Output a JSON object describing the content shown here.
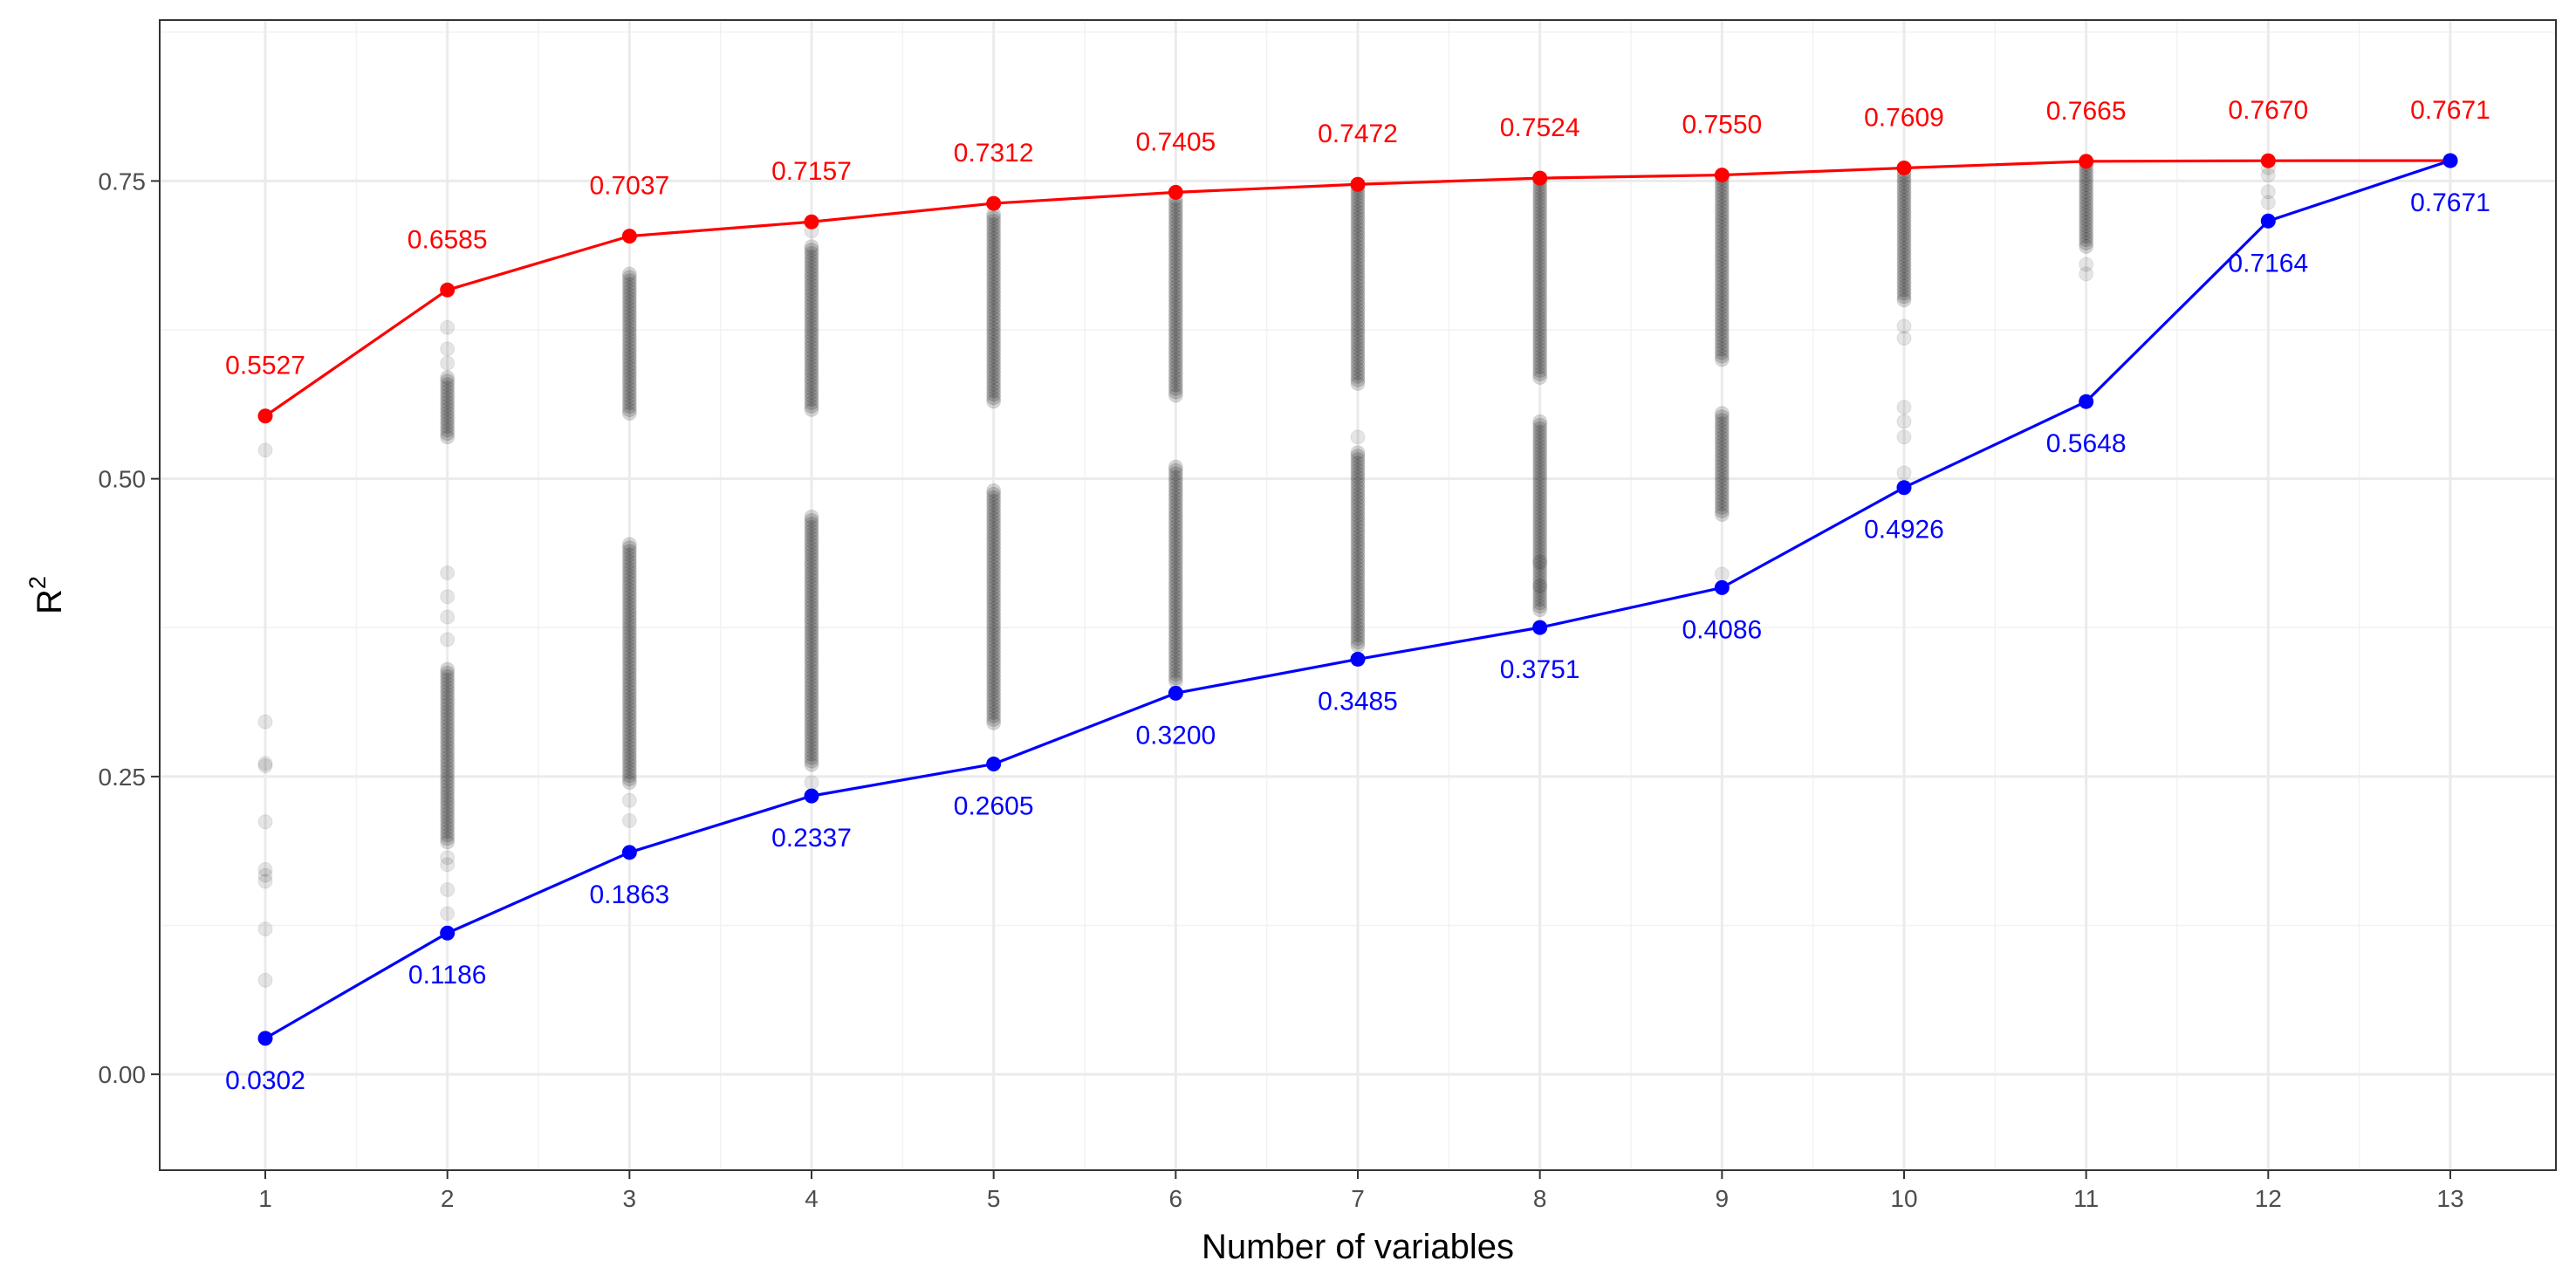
{
  "chart_data": {
    "type": "scatter",
    "xlabel": "Number of variables",
    "ylabel": "R",
    "ylabel_superscript": "2",
    "xlim": [
      0.42,
      13.58
    ],
    "ylim": [
      -0.0805,
      0.8851
    ],
    "x_ticks": [
      1,
      2,
      3,
      4,
      5,
      6,
      7,
      8,
      9,
      10,
      11,
      12,
      13
    ],
    "y_ticks": [
      0.0,
      0.25,
      0.5,
      0.75
    ],
    "y_tick_labels": [
      "0.00",
      "0.25",
      "0.50",
      "0.75"
    ],
    "x_tick_labels": [
      "1",
      "2",
      "3",
      "4",
      "5",
      "6",
      "7",
      "8",
      "9",
      "10",
      "11",
      "12",
      "13"
    ],
    "grid": true,
    "legend": "none",
    "series": [
      {
        "kind": "line",
        "color": "#ff0000",
        "x": [
          1,
          2,
          3,
          4,
          5,
          6,
          7,
          8,
          9,
          10,
          11,
          12,
          13
        ],
        "values": [
          0.5527,
          0.6585,
          0.7037,
          0.7157,
          0.7312,
          0.7405,
          0.7472,
          0.7524,
          0.755,
          0.7609,
          0.7665,
          0.767,
          0.7671
        ],
        "labels": [
          "0.5527",
          "0.6585",
          "0.7037",
          "0.7157",
          "0.7312",
          "0.7405",
          "0.7472",
          "0.7524",
          "0.7550",
          "0.7609",
          "0.7665",
          "0.7670",
          "0.7671"
        ],
        "label_position": "above"
      },
      {
        "kind": "line",
        "color": "#0000ff",
        "x": [
          1,
          2,
          3,
          4,
          5,
          6,
          7,
          8,
          9,
          10,
          11,
          12,
          13
        ],
        "values": [
          0.0302,
          0.1186,
          0.1863,
          0.2337,
          0.2605,
          0.32,
          0.3485,
          0.3751,
          0.4086,
          0.4926,
          0.5648,
          0.7164,
          0.7671
        ],
        "labels": [
          "0.0302",
          "0.1186",
          "0.1863",
          "0.2337",
          "0.2605",
          "0.3200",
          "0.3485",
          "0.3751",
          "0.4086",
          "0.4926",
          "0.5648",
          "0.7164",
          "0.7671"
        ],
        "label_position": "below"
      }
    ],
    "scatter_color": "#000000",
    "scatter_opacity": 0.1,
    "scatter_clusters": [
      {
        "x": 1,
        "bands": [],
        "singles": [
          0.524,
          0.296,
          0.261,
          0.259,
          0.212,
          0.172,
          0.167,
          0.162,
          0.122,
          0.079
        ]
      },
      {
        "x": 2,
        "bands": [
          [
            0.535,
            0.585
          ],
          [
            0.195,
            0.34
          ]
        ],
        "singles": [
          0.627,
          0.609,
          0.597,
          0.421,
          0.401,
          0.384,
          0.365,
          0.182,
          0.176,
          0.155,
          0.135
        ]
      },
      {
        "x": 3,
        "bands": [
          [
            0.555,
            0.672
          ],
          [
            0.245,
            0.445
          ]
        ],
        "singles": [
          0.23,
          0.213
        ]
      },
      {
        "x": 4,
        "bands": [
          [
            0.558,
            0.695
          ],
          [
            0.26,
            0.468
          ]
        ],
        "singles": [
          0.708,
          0.245
        ]
      },
      {
        "x": 5,
        "bands": [
          [
            0.565,
            0.722
          ],
          [
            0.295,
            0.49
          ]
        ],
        "singles": []
      },
      {
        "x": 6,
        "bands": [
          [
            0.57,
            0.735
          ],
          [
            0.33,
            0.51
          ]
        ],
        "singles": []
      },
      {
        "x": 7,
        "bands": [
          [
            0.58,
            0.745
          ],
          [
            0.36,
            0.522
          ]
        ],
        "singles": [
          0.535
        ]
      },
      {
        "x": 8,
        "bands": [
          [
            0.585,
            0.75
          ],
          [
            0.39,
            0.548
          ]
        ],
        "singles": [
          0.43,
          0.41
        ]
      },
      {
        "x": 9,
        "bands": [
          [
            0.6,
            0.752
          ],
          [
            0.47,
            0.555
          ]
        ],
        "singles": [
          0.42
        ]
      },
      {
        "x": 10,
        "bands": [
          [
            0.65,
            0.757
          ]
        ],
        "singles": [
          0.628,
          0.618,
          0.56,
          0.548,
          0.535,
          0.505
        ]
      },
      {
        "x": 11,
        "bands": [
          [
            0.695,
            0.764
          ]
        ],
        "singles": [
          0.68,
          0.672
        ]
      },
      {
        "x": 12,
        "bands": [],
        "singles": [
          0.761,
          0.755,
          0.741,
          0.732
        ]
      },
      {
        "x": 13,
        "bands": [],
        "singles": []
      }
    ]
  }
}
